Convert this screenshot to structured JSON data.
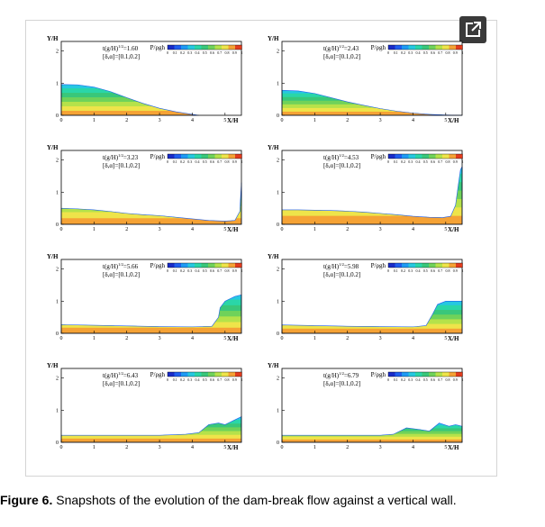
{
  "figure": {
    "caption_label": "Figure 6.",
    "caption_text": " Snapshots of the evolution of the dam-break flow against a vertical wall."
  },
  "ui": {
    "expand_icon": "expand-icon",
    "accent": "#3a3a3a"
  },
  "colormap": {
    "title": "P/ρgh",
    "ticks": [
      "0",
      "0.1",
      "0.2",
      "0.3",
      "0.4",
      "0.5",
      "0.6",
      "0.7",
      "0.8",
      "0.9",
      "1"
    ],
    "colors": [
      "#1a2cc8",
      "#1f5ef0",
      "#1e9af4",
      "#26c8e0",
      "#2ad6a8",
      "#39c77a",
      "#6fd25a",
      "#b5e24a",
      "#eee44a",
      "#f5a235",
      "#e23c1e"
    ]
  },
  "chart_data": [
    {
      "type": "area",
      "title": "",
      "time_label": "t(g/H)",
      "time_exp": "1/2",
      "time_value": "=1.60",
      "params": "[δ,α]=[0.1,0.2]",
      "xlabel": "X/H",
      "ylabel": "Y/H",
      "xlim": [
        0,
        5.5
      ],
      "ylim": [
        0,
        2.3
      ],
      "xticks": [
        "0",
        "1",
        "2",
        "3",
        "4",
        "5"
      ],
      "yticks": [
        "0",
        "1",
        "2"
      ],
      "profile": [
        [
          0,
          0.96
        ],
        [
          0.5,
          0.95
        ],
        [
          1.0,
          0.88
        ],
        [
          1.5,
          0.74
        ],
        [
          2.0,
          0.55
        ],
        [
          2.5,
          0.37
        ],
        [
          3.0,
          0.22
        ],
        [
          3.5,
          0.11
        ],
        [
          4.0,
          0.03
        ],
        [
          4.2,
          0
        ]
      ]
    },
    {
      "type": "area",
      "title": "",
      "time_label": "t(g/H)",
      "time_exp": "1/2",
      "time_value": "=2.43",
      "params": "[δ,α]=[0.1,0.2]",
      "xlabel": "X/H",
      "ylabel": "Y/H",
      "xlim": [
        0,
        5.5
      ],
      "ylim": [
        0,
        2.3
      ],
      "xticks": [
        "0",
        "1",
        "2",
        "3",
        "4",
        "5"
      ],
      "yticks": [
        "0",
        "1",
        "2"
      ],
      "profile": [
        [
          0,
          0.78
        ],
        [
          0.5,
          0.76
        ],
        [
          1.0,
          0.68
        ],
        [
          1.5,
          0.55
        ],
        [
          2.0,
          0.42
        ],
        [
          2.5,
          0.31
        ],
        [
          3.0,
          0.21
        ],
        [
          3.5,
          0.13
        ],
        [
          4.0,
          0.07
        ],
        [
          4.5,
          0.03
        ],
        [
          5.0,
          0.01
        ],
        [
          5.5,
          0
        ]
      ]
    },
    {
      "type": "area",
      "title": "",
      "time_label": "t(g/H)",
      "time_exp": "1/2",
      "time_value": "=3.23",
      "params": "[δ,α]=[0.1,0.2]",
      "xlabel": "X/H",
      "ylabel": "Y/H",
      "xlim": [
        0,
        5.5
      ],
      "ylim": [
        0,
        2.3
      ],
      "xticks": [
        "0",
        "1",
        "2",
        "3",
        "4",
        "5"
      ],
      "yticks": [
        "0",
        "1",
        "2"
      ],
      "profile": [
        [
          0,
          0.5
        ],
        [
          0.5,
          0.48
        ],
        [
          1.0,
          0.45
        ],
        [
          1.5,
          0.4
        ],
        [
          2.0,
          0.34
        ],
        [
          2.5,
          0.3
        ],
        [
          3.0,
          0.27
        ],
        [
          3.5,
          0.22
        ],
        [
          4.0,
          0.17
        ],
        [
          4.5,
          0.12
        ],
        [
          5.0,
          0.1
        ],
        [
          5.3,
          0.12
        ],
        [
          5.45,
          0.4
        ],
        [
          5.5,
          1.3
        ]
      ]
    },
    {
      "type": "area",
      "title": "",
      "time_label": "t(g/H)",
      "time_exp": "1/2",
      "time_value": "=4.53",
      "params": "[δ,α]=[0.1,0.2]",
      "xlabel": "X/H",
      "ylabel": "Y/H",
      "xlim": [
        0,
        5.5
      ],
      "ylim": [
        0,
        2.3
      ],
      "xticks": [
        "0",
        "1",
        "2",
        "3",
        "4",
        "5"
      ],
      "yticks": [
        "0",
        "1",
        "2"
      ],
      "profile": [
        [
          0,
          0.45
        ],
        [
          0.5,
          0.45
        ],
        [
          1.0,
          0.44
        ],
        [
          1.5,
          0.43
        ],
        [
          2.0,
          0.41
        ],
        [
          2.5,
          0.38
        ],
        [
          3.0,
          0.34
        ],
        [
          3.5,
          0.3
        ],
        [
          4.0,
          0.25
        ],
        [
          4.5,
          0.22
        ],
        [
          4.9,
          0.21
        ],
        [
          5.15,
          0.25
        ],
        [
          5.3,
          0.6
        ],
        [
          5.38,
          1.2
        ],
        [
          5.45,
          1.7
        ],
        [
          5.5,
          1.8
        ]
      ]
    },
    {
      "type": "area",
      "title": "",
      "time_label": "t(g/H)",
      "time_exp": "1/2",
      "time_value": "=5.66",
      "params": "[δ,α]=[0.1,0.2]",
      "xlabel": "X/H",
      "ylabel": "Y/H",
      "xlim": [
        0,
        5.5
      ],
      "ylim": [
        0,
        2.3
      ],
      "xticks": [
        "0",
        "1",
        "2",
        "3",
        "4",
        "5"
      ],
      "yticks": [
        "0",
        "1",
        "2"
      ],
      "profile": [
        [
          0,
          0.27
        ],
        [
          1.0,
          0.25
        ],
        [
          2.0,
          0.23
        ],
        [
          3.0,
          0.21
        ],
        [
          4.0,
          0.2
        ],
        [
          4.6,
          0.22
        ],
        [
          4.8,
          0.5
        ],
        [
          4.85,
          0.8
        ],
        [
          5.0,
          1.0
        ],
        [
          5.3,
          1.15
        ],
        [
          5.5,
          1.2
        ]
      ]
    },
    {
      "type": "area",
      "title": "",
      "time_label": "t(g/H)",
      "time_exp": "1/2",
      "time_value": "=5.98",
      "params": "[δ,α]=[0.1,0.2]",
      "xlabel": "X/H",
      "ylabel": "Y/H",
      "xlim": [
        0,
        5.5
      ],
      "ylim": [
        0,
        2.3
      ],
      "xticks": [
        "0",
        "1",
        "2",
        "3",
        "4",
        "5"
      ],
      "yticks": [
        "0",
        "1",
        "2"
      ],
      "profile": [
        [
          0,
          0.26
        ],
        [
          1.0,
          0.24
        ],
        [
          2.0,
          0.22
        ],
        [
          3.0,
          0.21
        ],
        [
          4.0,
          0.2
        ],
        [
          4.4,
          0.24
        ],
        [
          4.6,
          0.6
        ],
        [
          4.75,
          0.9
        ],
        [
          5.0,
          1.0
        ],
        [
          5.3,
          1.0
        ],
        [
          5.5,
          1.0
        ]
      ]
    },
    {
      "type": "area",
      "title": "",
      "time_label": "t(g/H)",
      "time_exp": "1/2",
      "time_value": "=6.43",
      "params": "[δ,α]=[0.1,0.2]",
      "xlabel": "X/H",
      "ylabel": "Y/H",
      "xlim": [
        0,
        5.5
      ],
      "ylim": [
        0,
        2.3
      ],
      "xticks": [
        "0",
        "1",
        "2",
        "3",
        "4",
        "5"
      ],
      "yticks": [
        "0",
        "1",
        "2"
      ],
      "profile": [
        [
          0,
          0.22
        ],
        [
          1.0,
          0.22
        ],
        [
          2.0,
          0.22
        ],
        [
          3.0,
          0.22
        ],
        [
          3.8,
          0.25
        ],
        [
          4.2,
          0.3
        ],
        [
          4.5,
          0.55
        ],
        [
          4.8,
          0.6
        ],
        [
          5.0,
          0.55
        ],
        [
          5.3,
          0.7
        ],
        [
          5.5,
          0.8
        ]
      ]
    },
    {
      "type": "area",
      "title": "",
      "time_label": "t(g/H)",
      "time_exp": "1/2",
      "time_value": "=6.79",
      "params": "[δ,α]=[0.1,0.2]",
      "xlabel": "X/H",
      "ylabel": "Y/H",
      "xlim": [
        0,
        5.5
      ],
      "ylim": [
        0,
        2.3
      ],
      "xticks": [
        "0",
        "1",
        "2",
        "3",
        "4",
        "5"
      ],
      "yticks": [
        "0",
        "1",
        "2"
      ],
      "profile": [
        [
          0,
          0.22
        ],
        [
          1.0,
          0.22
        ],
        [
          2.0,
          0.22
        ],
        [
          3.0,
          0.22
        ],
        [
          3.4,
          0.25
        ],
        [
          3.8,
          0.45
        ],
        [
          4.2,
          0.4
        ],
        [
          4.5,
          0.35
        ],
        [
          4.8,
          0.6
        ],
        [
          5.1,
          0.5
        ],
        [
          5.3,
          0.55
        ],
        [
          5.5,
          0.5
        ]
      ]
    }
  ]
}
